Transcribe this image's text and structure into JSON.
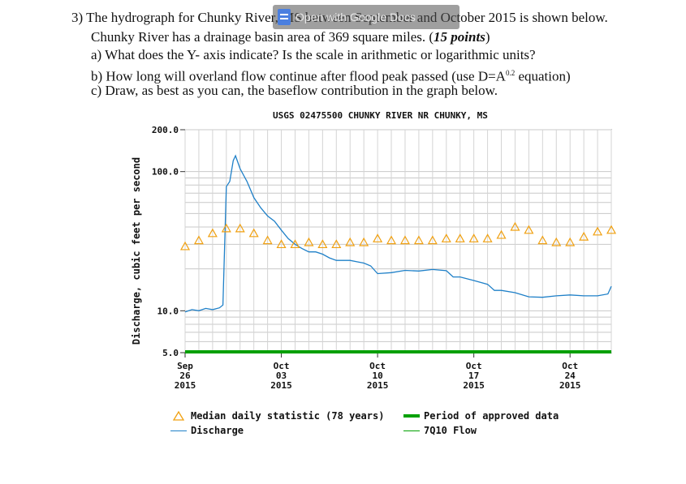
{
  "overlay": {
    "label": "Open with Google Docs",
    "icon": "google-docs-icon"
  },
  "question": {
    "line1_pre": "3) The hydrograph for Chunky River, MS between September and October 2015 is shown below.",
    "line2_pre": "Chunky River has a drainage basin area of 369 square miles. (",
    "line2_points": "15 points",
    "line2_post": ")",
    "item_a": "a)  What does the Y- axis indicate? Is the scale in arithmetic or logarithmic units?",
    "item_b_pre": "b)  How long will overland flow continue after flood peak passed (use D=A",
    "item_b_sup": "0.2",
    "item_b_post": " equation)",
    "item_c": "c)  Draw, as best as you can, the baseflow contribution in the graph below."
  },
  "chart_data": {
    "type": "line",
    "title": "USGS 02475500 CHUNKY RIVER NR CHUNKY, MS",
    "ylabel": "Discharge, cubic feet per second",
    "yscale": "log",
    "ylim": [
      5,
      200
    ],
    "yticks": [
      {
        "value": 200,
        "label": "200.0"
      },
      {
        "value": 100,
        "label": "100.0"
      },
      {
        "value": 10,
        "label": "10.0"
      },
      {
        "value": 5,
        "label": "5.0"
      }
    ],
    "xlim": [
      "2015-09-26",
      "2015-10-27"
    ],
    "xticks": [
      {
        "date": "2015-09-26",
        "lines": [
          "Sep",
          "26",
          "2015"
        ]
      },
      {
        "date": "2015-10-03",
        "lines": [
          "Oct",
          "03",
          "2015"
        ]
      },
      {
        "date": "2015-10-10",
        "lines": [
          "Oct",
          "10",
          "2015"
        ]
      },
      {
        "date": "2015-10-17",
        "lines": [
          "Oct",
          "17",
          "2015"
        ]
      },
      {
        "date": "2015-10-24",
        "lines": [
          "Oct",
          "24",
          "2015"
        ]
      }
    ],
    "grid": true,
    "series": [
      {
        "name": "Discharge",
        "color": "#1f80c8",
        "points": [
          [
            "2015-09-26 00:00",
            9.8
          ],
          [
            "2015-09-26 12:00",
            10.2
          ],
          [
            "2015-09-27 00:00",
            10.0
          ],
          [
            "2015-09-27 12:00",
            10.4
          ],
          [
            "2015-09-28 00:00",
            10.2
          ],
          [
            "2015-09-28 12:00",
            10.5
          ],
          [
            "2015-09-28 18:00",
            11
          ],
          [
            "2015-09-29 00:00",
            78
          ],
          [
            "2015-09-29 06:00",
            85
          ],
          [
            "2015-09-29 12:00",
            120
          ],
          [
            "2015-09-29 16:00",
            130
          ],
          [
            "2015-09-30 00:00",
            105
          ],
          [
            "2015-09-30 12:00",
            85
          ],
          [
            "2015-10-01 00:00",
            65
          ],
          [
            "2015-10-01 12:00",
            55
          ],
          [
            "2015-10-02 00:00",
            48
          ],
          [
            "2015-10-02 12:00",
            44
          ],
          [
            "2015-10-03 00:00",
            38
          ],
          [
            "2015-10-03 12:00",
            33
          ],
          [
            "2015-10-04 00:00",
            30
          ],
          [
            "2015-10-04 12:00",
            28
          ],
          [
            "2015-10-05 00:00",
            26.5
          ],
          [
            "2015-10-05 12:00",
            26.5
          ],
          [
            "2015-10-06 00:00",
            25.5
          ],
          [
            "2015-10-06 12:00",
            24
          ],
          [
            "2015-10-07 00:00",
            23
          ],
          [
            "2015-10-08 00:00",
            23
          ],
          [
            "2015-10-08 12:00",
            22.5
          ],
          [
            "2015-10-09 00:00",
            22
          ],
          [
            "2015-10-09 12:00",
            21
          ],
          [
            "2015-10-10 00:00",
            18.5
          ],
          [
            "2015-10-11 00:00",
            18.8
          ],
          [
            "2015-10-12 00:00",
            19.5
          ],
          [
            "2015-10-13 00:00",
            19.3
          ],
          [
            "2015-10-14 00:00",
            19.8
          ],
          [
            "2015-10-15 00:00",
            19.4
          ],
          [
            "2015-10-15 12:00",
            17.5
          ],
          [
            "2015-10-16 00:00",
            17.5
          ],
          [
            "2015-10-17 00:00",
            16.5
          ],
          [
            "2015-10-18 00:00",
            15.5
          ],
          [
            "2015-10-18 12:00",
            14
          ],
          [
            "2015-10-19 00:00",
            14
          ],
          [
            "2015-10-20 00:00",
            13.5
          ],
          [
            "2015-10-21 00:00",
            12.6
          ],
          [
            "2015-10-22 00:00",
            12.5
          ],
          [
            "2015-10-23 00:00",
            12.8
          ],
          [
            "2015-10-24 00:00",
            13
          ],
          [
            "2015-10-25 00:00",
            12.8
          ],
          [
            "2015-10-26 00:00",
            12.8
          ],
          [
            "2015-10-26 18:00",
            13.2
          ],
          [
            "2015-10-27 00:00",
            15
          ]
        ]
      },
      {
        "name": "Median daily statistic (78 years)",
        "color": "#f0a010",
        "marker": "triangle",
        "points": [
          [
            "2015-09-26",
            29
          ],
          [
            "2015-09-27",
            32
          ],
          [
            "2015-09-28",
            36
          ],
          [
            "2015-09-29",
            39
          ],
          [
            "2015-09-30",
            39
          ],
          [
            "2015-10-01",
            36
          ],
          [
            "2015-10-02",
            32
          ],
          [
            "2015-10-03",
            30
          ],
          [
            "2015-10-04",
            30
          ],
          [
            "2015-10-05",
            31
          ],
          [
            "2015-10-06",
            30
          ],
          [
            "2015-10-07",
            30
          ],
          [
            "2015-10-08",
            31
          ],
          [
            "2015-10-09",
            31
          ],
          [
            "2015-10-10",
            33
          ],
          [
            "2015-10-11",
            32
          ],
          [
            "2015-10-12",
            32
          ],
          [
            "2015-10-13",
            32
          ],
          [
            "2015-10-14",
            32
          ],
          [
            "2015-10-15",
            33
          ],
          [
            "2015-10-16",
            33
          ],
          [
            "2015-10-17",
            33
          ],
          [
            "2015-10-18",
            33
          ],
          [
            "2015-10-19",
            35
          ],
          [
            "2015-10-20",
            40
          ],
          [
            "2015-10-21",
            38
          ],
          [
            "2015-10-22",
            32
          ],
          [
            "2015-10-23",
            31
          ],
          [
            "2015-10-24",
            31
          ],
          [
            "2015-10-25",
            34
          ],
          [
            "2015-10-26",
            37
          ],
          [
            "2015-10-27",
            38
          ]
        ]
      },
      {
        "name": "Period of approved data",
        "color": "#00a000"
      },
      {
        "name": "7Q10 Flow",
        "color": "#00a000"
      }
    ],
    "legend": {
      "median": "Median daily statistic (78 years)",
      "discharge": "Discharge",
      "approved": "Period of approved data",
      "q710": "7Q10 Flow"
    }
  }
}
